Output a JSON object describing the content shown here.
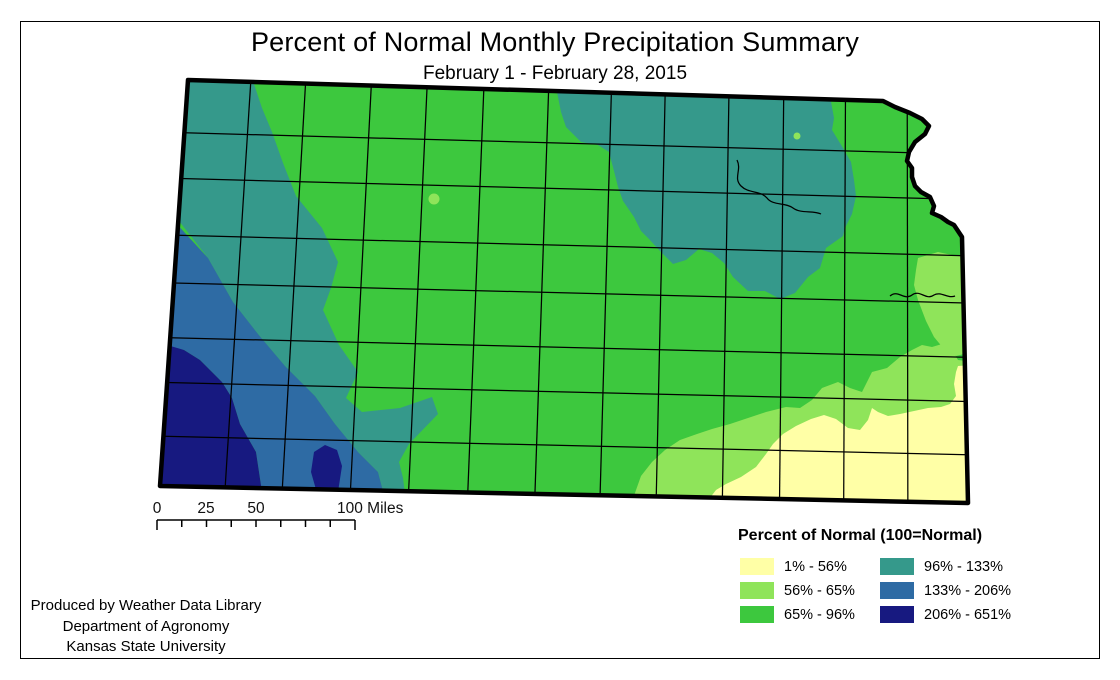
{
  "header": {
    "title": "Percent of Normal Monthly Precipitation Summary",
    "subtitle": "February 1 - February 28, 2015"
  },
  "map": {
    "shape": "Kansas state outline with county boundaries",
    "classification_pattern": [
      {
        "area": "southwest corner",
        "class": "206% - 651%"
      },
      {
        "area": "western diagonal band northeast of the southwest corner",
        "class": "133% - 206%"
      },
      {
        "area": "northwest corner and diagonal band running to the south-central border",
        "class": "96% - 133%"
      },
      {
        "area": "north-central blob",
        "class": "96% - 133%"
      },
      {
        "area": "center and most of the state",
        "class": "65% - 96%"
      },
      {
        "area": "southeast band plus small east-edge patch",
        "class": "56% - 65%"
      },
      {
        "area": "southeast corner",
        "class": "1% - 56%"
      }
    ]
  },
  "scalebar": {
    "ticks": [
      "0",
      "25",
      "50",
      "100 Miles"
    ]
  },
  "legend": {
    "title": "Percent of Normal (100=Normal)",
    "items": [
      {
        "label": "1% - 56%",
        "color": "#FFFFA6"
      },
      {
        "label": "56% - 65%",
        "color": "#8FE45A"
      },
      {
        "label": "65% - 96%",
        "color": "#3DC83E"
      },
      {
        "label": "96% - 133%",
        "color": "#35998B"
      },
      {
        "label": "133% - 206%",
        "color": "#2E6BA4"
      },
      {
        "label": "206% - 651%",
        "color": "#171980"
      }
    ]
  },
  "credits": {
    "lines": [
      "Produced by Weather Data Library",
      "Department of Agronomy",
      "Kansas State University"
    ]
  },
  "colors": {
    "class_1_56": "#FFFFA6",
    "class_56_65": "#8FE45A",
    "class_65_96": "#3DC83E",
    "class_96_133": "#35998B",
    "class_133_206": "#2E6BA4",
    "class_206_651": "#171980",
    "outline": "#000000"
  }
}
